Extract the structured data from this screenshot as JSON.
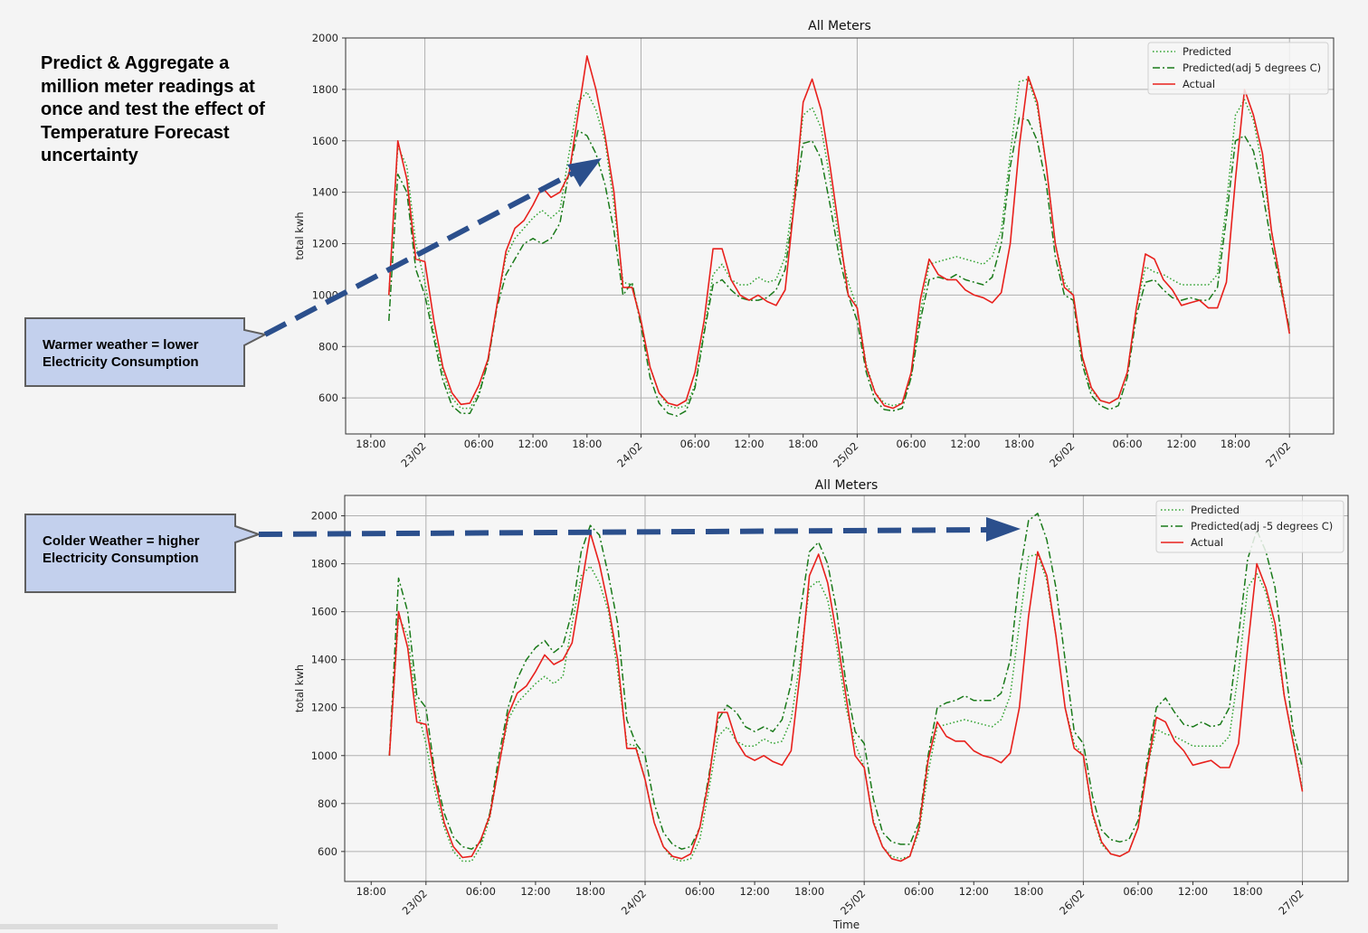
{
  "headline": "Predict & Aggregate a million meter readings at once and test the effect of Temperature Forecast uncertainty",
  "callouts": [
    {
      "text_line1": "Warmer weather = lower",
      "text_line2": "Electricity Consumption"
    },
    {
      "text_line1": "Colder Weather = higher",
      "text_line2": "Electricity Consumption"
    }
  ],
  "colors": {
    "predicted": "#2ca02c",
    "adjusted": "#1a7a1a",
    "actual": "#e8201c",
    "arrow": "#2b4f8c",
    "callout_fill": "#c3d0ed",
    "callout_border": "#5f5f5f"
  },
  "chart_data": [
    {
      "type": "line",
      "title": "All Meters",
      "xlabel": "",
      "ylabel": "total kwh",
      "x_unit": "hours since 22/02 00:00",
      "x_start": 20,
      "x_step": 1,
      "xlim": [
        15.2,
        124.9
      ],
      "ylim": [
        460,
        2000
      ],
      "yticks": [
        600,
        800,
        1000,
        1200,
        1400,
        1600,
        1800,
        2000
      ],
      "xticks": [
        {
          "x": 18,
          "label": "18:00",
          "rot": false
        },
        {
          "x": 24,
          "label": "23/02",
          "rot": true
        },
        {
          "x": 30,
          "label": "06:00",
          "rot": false
        },
        {
          "x": 36,
          "label": "12:00",
          "rot": false
        },
        {
          "x": 42,
          "label": "18:00",
          "rot": false
        },
        {
          "x": 48,
          "label": "24/02",
          "rot": true
        },
        {
          "x": 54,
          "label": "06:00",
          "rot": false
        },
        {
          "x": 60,
          "label": "12:00",
          "rot": false
        },
        {
          "x": 66,
          "label": "18:00",
          "rot": false
        },
        {
          "x": 72,
          "label": "25/02",
          "rot": true
        },
        {
          "x": 78,
          "label": "06:00",
          "rot": false
        },
        {
          "x": 84,
          "label": "12:00",
          "rot": false
        },
        {
          "x": 90,
          "label": "18:00",
          "rot": false
        },
        {
          "x": 96,
          "label": "26/02",
          "rot": true
        },
        {
          "x": 102,
          "label": "06:00",
          "rot": false
        },
        {
          "x": 108,
          "label": "12:00",
          "rot": false
        },
        {
          "x": 114,
          "label": "18:00",
          "rot": false
        },
        {
          "x": 120,
          "label": "27/02",
          "rot": true
        }
      ],
      "grid": true,
      "legend": "top-right",
      "series": [
        {
          "name": "Predicted",
          "style": "dotted",
          "color": "#2ca02c",
          "values": [
            1000,
            1580,
            1500,
            1200,
            1050,
            850,
            700,
            600,
            560,
            560,
            620,
            740,
            960,
            1150,
            1220,
            1260,
            1300,
            1330,
            1300,
            1330,
            1550,
            1750,
            1790,
            1720,
            1600,
            1350,
            1050,
            1040,
            900,
            720,
            620,
            570,
            560,
            570,
            650,
            860,
            1080,
            1120,
            1060,
            1040,
            1040,
            1070,
            1050,
            1060,
            1150,
            1400,
            1700,
            1730,
            1650,
            1450,
            1200,
            1050,
            950,
            730,
            620,
            580,
            570,
            580,
            680,
            930,
            1120,
            1130,
            1140,
            1150,
            1140,
            1130,
            1120,
            1150,
            1250,
            1550,
            1830,
            1840,
            1730,
            1500,
            1200,
            1050,
            1000,
            750,
            630,
            590,
            580,
            600,
            700,
            950,
            1110,
            1090,
            1080,
            1060,
            1040,
            1040,
            1040,
            1040,
            1080,
            1350,
            1700,
            1760,
            1680,
            1500,
            1250,
            1060,
            860
          ]
        },
        {
          "name": "Predicted(adj 5 degrees C)",
          "style": "dashdot",
          "color": "#1a7a1a",
          "values": [
            900,
            1470,
            1400,
            1100,
            1000,
            830,
            670,
            570,
            540,
            540,
            610,
            740,
            950,
            1080,
            1140,
            1200,
            1220,
            1200,
            1220,
            1280,
            1480,
            1640,
            1620,
            1550,
            1430,
            1250,
            1000,
            1050,
            880,
            680,
            580,
            540,
            530,
            550,
            640,
            850,
            1040,
            1060,
            1020,
            990,
            980,
            980,
            990,
            1020,
            1100,
            1350,
            1590,
            1600,
            1530,
            1350,
            1150,
            1000,
            900,
            700,
            590,
            555,
            550,
            560,
            680,
            900,
            1060,
            1070,
            1060,
            1080,
            1060,
            1050,
            1040,
            1070,
            1200,
            1500,
            1690,
            1680,
            1600,
            1430,
            1150,
            1000,
            980,
            730,
            610,
            570,
            555,
            570,
            680,
            920,
            1050,
            1060,
            1020,
            990,
            980,
            990,
            980,
            980,
            1030,
            1300,
            1600,
            1620,
            1560,
            1400,
            1200,
            1030,
            870
          ]
        },
        {
          "name": "Actual",
          "style": "solid",
          "color": "#e8201c",
          "values": [
            1000,
            1600,
            1450,
            1140,
            1130,
            900,
            720,
            620,
            575,
            580,
            650,
            750,
            960,
            1170,
            1260,
            1290,
            1350,
            1420,
            1380,
            1400,
            1470,
            1700,
            1930,
            1800,
            1620,
            1400,
            1030,
            1030,
            900,
            720,
            620,
            580,
            570,
            590,
            700,
            900,
            1180,
            1180,
            1060,
            1000,
            980,
            1000,
            975,
            960,
            1020,
            1350,
            1750,
            1840,
            1720,
            1500,
            1250,
            1000,
            950,
            720,
            620,
            570,
            560,
            580,
            700,
            980,
            1140,
            1080,
            1060,
            1060,
            1020,
            1000,
            990,
            970,
            1010,
            1200,
            1580,
            1850,
            1750,
            1500,
            1200,
            1030,
            1000,
            760,
            640,
            590,
            580,
            600,
            700,
            950,
            1160,
            1140,
            1060,
            1020,
            960,
            970,
            980,
            950,
            950,
            1050,
            1450,
            1800,
            1700,
            1550,
            1250,
            1050,
            850
          ]
        }
      ]
    },
    {
      "type": "line",
      "title": "All Meters",
      "xlabel": "Time",
      "ylabel": "total kwh",
      "x_unit": "hours since 22/02 00:00",
      "x_start": 20,
      "x_step": 1,
      "xlim": [
        15.1,
        125
      ],
      "ylim": [
        475,
        2085
      ],
      "yticks": [
        600,
        800,
        1000,
        1200,
        1400,
        1600,
        1800,
        2000
      ],
      "xticks": [
        {
          "x": 18,
          "label": "18:00",
          "rot": false
        },
        {
          "x": 24,
          "label": "23/02",
          "rot": true
        },
        {
          "x": 30,
          "label": "06:00",
          "rot": false
        },
        {
          "x": 36,
          "label": "12:00",
          "rot": false
        },
        {
          "x": 42,
          "label": "18:00",
          "rot": false
        },
        {
          "x": 48,
          "label": "24/02",
          "rot": true
        },
        {
          "x": 54,
          "label": "06:00",
          "rot": false
        },
        {
          "x": 60,
          "label": "12:00",
          "rot": false
        },
        {
          "x": 66,
          "label": "18:00",
          "rot": false
        },
        {
          "x": 72,
          "label": "25/02",
          "rot": true
        },
        {
          "x": 78,
          "label": "06:00",
          "rot": false
        },
        {
          "x": 84,
          "label": "12:00",
          "rot": false
        },
        {
          "x": 90,
          "label": "18:00",
          "rot": false
        },
        {
          "x": 96,
          "label": "26/02",
          "rot": true
        },
        {
          "x": 102,
          "label": "06:00",
          "rot": false
        },
        {
          "x": 108,
          "label": "12:00",
          "rot": false
        },
        {
          "x": 114,
          "label": "18:00",
          "rot": false
        },
        {
          "x": 120,
          "label": "27/02",
          "rot": true
        }
      ],
      "grid": true,
      "legend": "top-right",
      "series": [
        {
          "name": "Predicted",
          "style": "dotted",
          "color": "#2ca02c",
          "values": [
            1000,
            1580,
            1500,
            1200,
            1050,
            850,
            700,
            600,
            560,
            560,
            620,
            740,
            960,
            1150,
            1220,
            1260,
            1300,
            1330,
            1300,
            1330,
            1550,
            1750,
            1790,
            1720,
            1600,
            1350,
            1050,
            1040,
            900,
            720,
            620,
            570,
            560,
            570,
            650,
            860,
            1080,
            1120,
            1060,
            1040,
            1040,
            1070,
            1050,
            1060,
            1150,
            1400,
            1700,
            1730,
            1650,
            1450,
            1200,
            1050,
            950,
            730,
            620,
            580,
            570,
            580,
            680,
            930,
            1120,
            1130,
            1140,
            1150,
            1140,
            1130,
            1120,
            1150,
            1250,
            1550,
            1830,
            1840,
            1730,
            1500,
            1200,
            1050,
            1000,
            750,
            630,
            590,
            580,
            600,
            700,
            950,
            1110,
            1090,
            1080,
            1060,
            1040,
            1040,
            1040,
            1040,
            1080,
            1350,
            1700,
            1760,
            1680,
            1500,
            1250,
            1060,
            860
          ]
        },
        {
          "name": "Predicted(adj -5 degrees C)",
          "style": "dashdot",
          "color": "#1a7a1a",
          "values": [
            1000,
            1740,
            1600,
            1250,
            1200,
            920,
            760,
            660,
            620,
            610,
            640,
            760,
            1000,
            1200,
            1320,
            1400,
            1450,
            1480,
            1430,
            1460,
            1600,
            1850,
            1960,
            1920,
            1750,
            1550,
            1150,
            1050,
            1000,
            800,
            680,
            630,
            610,
            620,
            700,
            920,
            1150,
            1210,
            1180,
            1120,
            1100,
            1120,
            1100,
            1150,
            1300,
            1600,
            1850,
            1890,
            1800,
            1600,
            1300,
            1100,
            1050,
            820,
            680,
            640,
            630,
            630,
            720,
            1000,
            1200,
            1220,
            1230,
            1250,
            1230,
            1230,
            1230,
            1260,
            1400,
            1750,
            1980,
            2010,
            1900,
            1700,
            1400,
            1100,
            1050,
            830,
            690,
            650,
            640,
            650,
            730,
            980,
            1200,
            1240,
            1180,
            1130,
            1120,
            1140,
            1120,
            1130,
            1200,
            1500,
            1820,
            1940,
            1850,
            1700,
            1400,
            1100,
            950
          ]
        },
        {
          "name": "Actual",
          "style": "solid",
          "color": "#e8201c",
          "values": [
            1000,
            1600,
            1450,
            1140,
            1130,
            900,
            720,
            620,
            575,
            580,
            650,
            750,
            960,
            1170,
            1260,
            1290,
            1350,
            1420,
            1380,
            1400,
            1470,
            1700,
            1930,
            1800,
            1620,
            1400,
            1030,
            1030,
            900,
            720,
            620,
            580,
            570,
            590,
            700,
            900,
            1180,
            1180,
            1060,
            1000,
            980,
            1000,
            975,
            960,
            1020,
            1350,
            1750,
            1840,
            1720,
            1500,
            1250,
            1000,
            950,
            720,
            620,
            570,
            560,
            580,
            700,
            980,
            1140,
            1080,
            1060,
            1060,
            1020,
            1000,
            990,
            970,
            1010,
            1200,
            1580,
            1850,
            1750,
            1500,
            1200,
            1030,
            1000,
            760,
            640,
            590,
            580,
            600,
            700,
            950,
            1160,
            1140,
            1060,
            1020,
            960,
            970,
            980,
            950,
            950,
            1050,
            1450,
            1800,
            1700,
            1550,
            1250,
            1050,
            850
          ]
        }
      ]
    }
  ]
}
